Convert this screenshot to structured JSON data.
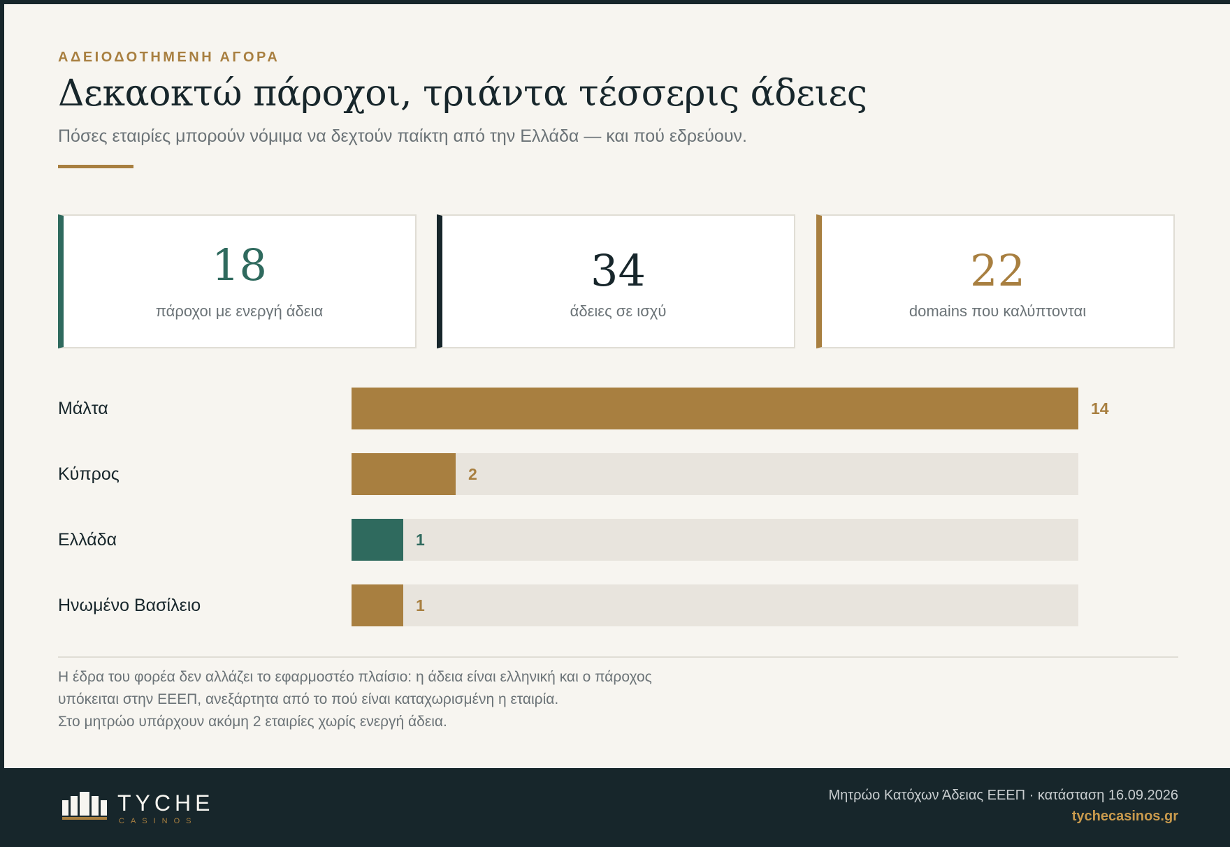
{
  "eyebrow": "ΑΔΕΙΟΔΟΤΗΜΕΝΗ ΑΓΟΡΑ",
  "title": "Δεκαοκτώ πάροχοι, τριάντα τέσσερις άδειες",
  "subtitle": "Πόσες εταιρίες μπορούν νόμιμα να δεχτούν παίκτη από την Ελλάδα — και πού εδρεύουν.",
  "stats": [
    {
      "value": "18",
      "label": "πάροχοι με ενεργή άδεια",
      "color": "#2f6a5e"
    },
    {
      "value": "34",
      "label": "άδειες σε ισχύ",
      "color": "#17262b"
    },
    {
      "value": "22",
      "label": "domains που καλύπτονται",
      "color": "#a87f40"
    }
  ],
  "chart_data": {
    "type": "bar",
    "orientation": "horizontal",
    "categories": [
      "Μάλτα",
      "Κύπρος",
      "Ελλάδα",
      "Ηνωμένο Βασίλειο"
    ],
    "values": [
      14,
      2,
      1,
      1
    ],
    "bar_colors": [
      "#a87f40",
      "#a87f40",
      "#2f6a5e",
      "#a87f40"
    ],
    "xlim": [
      0,
      14
    ],
    "grid": false,
    "title": "",
    "xlabel": "",
    "ylabel": ""
  },
  "notes": [
    "Η έδρα του φορέα δεν αλλάζει το εφαρμοστέο πλαίσιο: η άδεια είναι ελληνική και ο πάροχος",
    "υπόκειται στην ΕΕΕΠ, ανεξάρτητα από το πού είναι καταχωρισμένη η εταιρία.",
    "Στο μητρώο υπάρχουν ακόμη 2 εταιρίες χωρίς ενεργή άδεια."
  ],
  "footer": {
    "logo_word": "TYCHE",
    "logo_sub": "CASINOS",
    "source": "Μητρώο Κατόχων Άδειας ΕΕΕΠ · κατάσταση 16.09.2026",
    "site": "tychecasinos.gr"
  },
  "colors": {
    "accent": "#a87f40",
    "green": "#2f6a5e",
    "navy": "#17262b",
    "track": "#e8e4dd",
    "background": "#f7f5f0"
  }
}
